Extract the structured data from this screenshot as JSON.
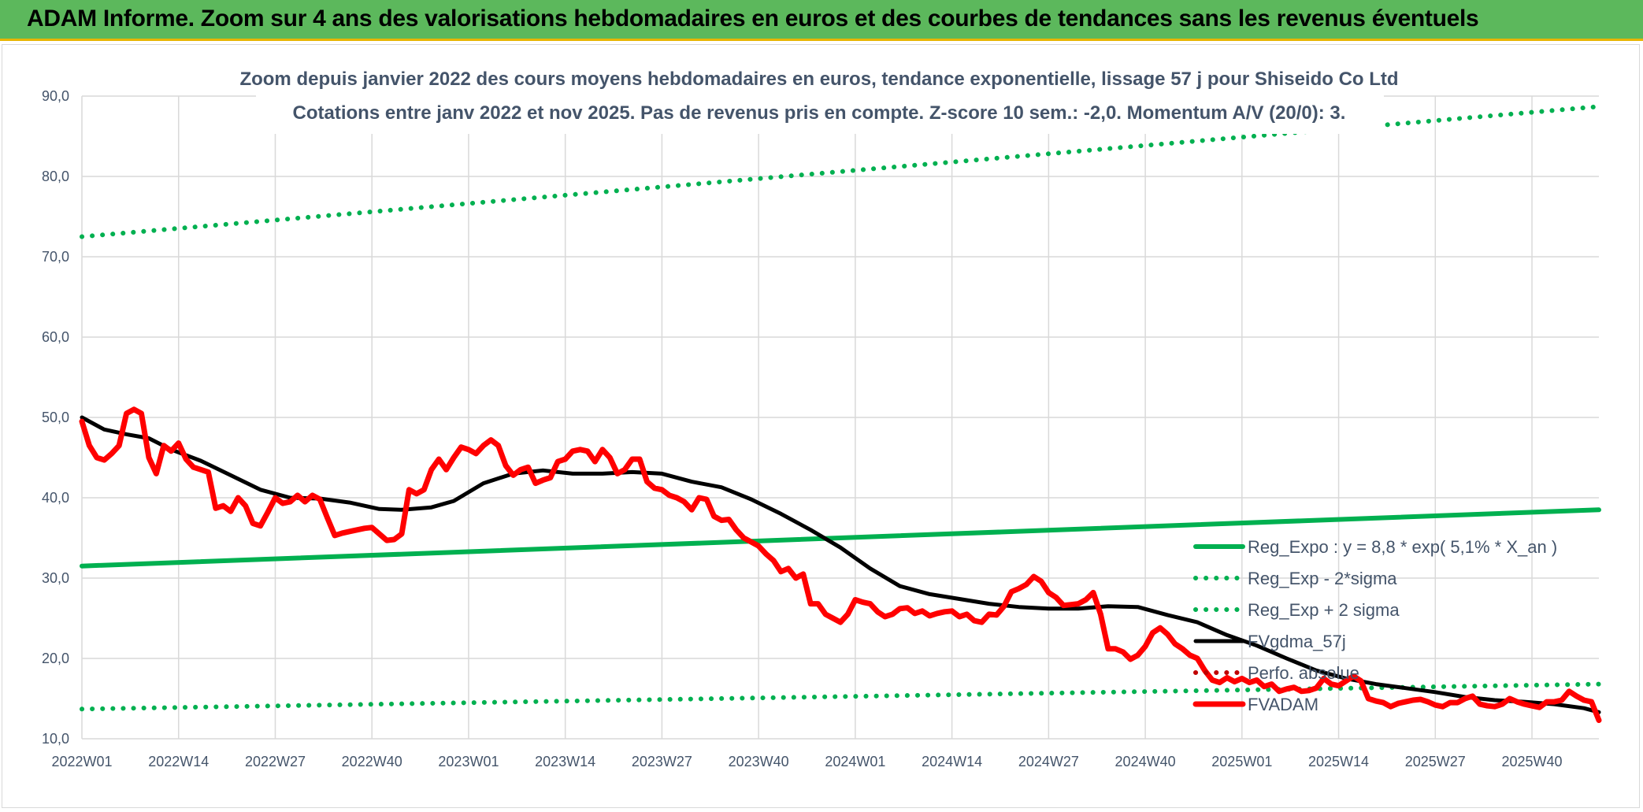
{
  "header": {
    "title": "ADAM Informe. Zoom sur 4 ans des valorisations hebdomadaires en euros et des courbes de tendances sans les revenus éventuels"
  },
  "colors": {
    "banner": "#5cb85c",
    "banner_border": "#e8b500",
    "green": "#00b050",
    "black": "#000000",
    "red": "#ff0000",
    "text": "#44546a",
    "grid": "#d9d9d9"
  },
  "chart_data": {
    "type": "line",
    "title_lines": [
      "Zoom depuis janvier 2022 des cours moyens hebdomadaires en euros, tendance exponentielle, lissage 57 j pour Shiseido Co Ltd",
      "Cotations entre janv 2022 et nov 2025. Pas de revenus pris en compte. Z-score 10 sem.: -2,0. Momentum A/V (20/0): 3."
    ],
    "xlabel": "",
    "ylabel": "",
    "ylim": [
      10,
      90
    ],
    "y_ticks": [
      "10,0",
      "20,0",
      "30,0",
      "40,0",
      "50,0",
      "60,0",
      "70,0",
      "80,0",
      "90,0"
    ],
    "y_tick_values": [
      10,
      20,
      30,
      40,
      50,
      60,
      70,
      80,
      90
    ],
    "x_range": [
      0,
      204
    ],
    "x_ticks": [
      "2022W01",
      "2022W14",
      "2022W27",
      "2022W40",
      "2023W01",
      "2023W14",
      "2023W27",
      "2023W40",
      "2024W01",
      "2024W14",
      "2024W27",
      "2024W40",
      "2025W01",
      "2025W14",
      "2025W27",
      "2025W40"
    ],
    "x_tick_weeks": [
      0,
      13,
      26,
      39,
      52,
      65,
      78,
      91,
      104,
      117,
      130,
      143,
      156,
      169,
      182,
      195
    ],
    "grid": true,
    "legend_position": "bottom-right",
    "series": [
      {
        "name": "Reg_Expo : y = 8,8 * exp( 5,1% *  X_an )",
        "style": "solid-thick",
        "color": "#00b050",
        "points": [
          [
            0,
            31.5
          ],
          [
            204,
            38.5
          ]
        ]
      },
      {
        "name": "Reg_Exp - 2*sigma",
        "style": "dotted",
        "color": "#00b050",
        "points": [
          [
            0,
            13.7
          ],
          [
            204,
            16.8
          ]
        ]
      },
      {
        "name": "Reg_Exp + 2 sigma",
        "style": "dotted",
        "color": "#00b050",
        "points": [
          [
            0,
            72.5
          ],
          [
            204,
            88.7
          ]
        ]
      },
      {
        "name": "FVgdma_57j",
        "style": "solid",
        "color": "#000000",
        "points": [
          [
            0,
            50.0
          ],
          [
            3,
            48.5
          ],
          [
            6,
            47.9
          ],
          [
            9,
            47.4
          ],
          [
            12,
            46.0
          ],
          [
            16,
            44.6
          ],
          [
            20,
            42.8
          ],
          [
            24,
            41.0
          ],
          [
            28,
            40.0
          ],
          [
            32,
            39.9
          ],
          [
            36,
            39.4
          ],
          [
            40,
            38.6
          ],
          [
            43,
            38.5
          ],
          [
            47,
            38.8
          ],
          [
            50,
            39.6
          ],
          [
            54,
            41.8
          ],
          [
            58,
            43.0
          ],
          [
            62,
            43.4
          ],
          [
            66,
            43.0
          ],
          [
            70,
            43.0
          ],
          [
            74,
            43.2
          ],
          [
            78,
            43.0
          ],
          [
            82,
            42.0
          ],
          [
            86,
            41.3
          ],
          [
            90,
            39.8
          ],
          [
            94,
            38.0
          ],
          [
            98,
            36.0
          ],
          [
            102,
            33.8
          ],
          [
            106,
            31.2
          ],
          [
            110,
            29.0
          ],
          [
            114,
            28.0
          ],
          [
            118,
            27.4
          ],
          [
            122,
            26.8
          ],
          [
            126,
            26.4
          ],
          [
            130,
            26.2
          ],
          [
            134,
            26.2
          ],
          [
            138,
            26.5
          ],
          [
            142,
            26.4
          ],
          [
            146,
            25.4
          ],
          [
            150,
            24.5
          ],
          [
            154,
            22.9
          ],
          [
            158,
            21.6
          ],
          [
            162,
            20.0
          ],
          [
            166,
            18.5
          ],
          [
            170,
            17.5
          ],
          [
            174,
            16.8
          ],
          [
            178,
            16.3
          ],
          [
            182,
            15.8
          ],
          [
            186,
            15.2
          ],
          [
            190,
            14.8
          ],
          [
            194,
            14.6
          ],
          [
            198,
            14.3
          ],
          [
            202,
            13.8
          ],
          [
            204,
            13.3
          ]
        ]
      },
      {
        "name": "Perfo. absolue",
        "style": "dotted",
        "color": "#c00000",
        "points": []
      },
      {
        "name": "FVADAM",
        "style": "solid-thick",
        "color": "#ff0000",
        "points": [
          [
            0,
            49.5
          ],
          [
            1,
            46.5
          ],
          [
            2,
            45.0
          ],
          [
            3,
            44.7
          ],
          [
            4,
            45.5
          ],
          [
            5,
            46.5
          ],
          [
            6,
            50.5
          ],
          [
            7,
            51.0
          ],
          [
            8,
            50.5
          ],
          [
            9,
            45.0
          ],
          [
            10,
            43.0
          ],
          [
            11,
            46.5
          ],
          [
            12,
            45.8
          ],
          [
            13,
            46.8
          ],
          [
            14,
            44.8
          ],
          [
            15,
            43.8
          ],
          [
            16,
            43.5
          ],
          [
            17,
            43.2
          ],
          [
            18,
            38.7
          ],
          [
            19,
            39.0
          ],
          [
            20,
            38.3
          ],
          [
            21,
            40.0
          ],
          [
            22,
            39.0
          ],
          [
            23,
            36.8
          ],
          [
            24,
            36.5
          ],
          [
            25,
            38.2
          ],
          [
            26,
            40.0
          ],
          [
            27,
            39.3
          ],
          [
            28,
            39.5
          ],
          [
            29,
            40.3
          ],
          [
            30,
            39.5
          ],
          [
            31,
            40.3
          ],
          [
            32,
            39.8
          ],
          [
            33,
            37.5
          ],
          [
            34,
            35.3
          ],
          [
            35,
            35.6
          ],
          [
            36,
            35.8
          ],
          [
            37,
            36.0
          ],
          [
            38,
            36.2
          ],
          [
            39,
            36.3
          ],
          [
            40,
            35.5
          ],
          [
            41,
            34.7
          ],
          [
            42,
            34.8
          ],
          [
            43,
            35.5
          ],
          [
            44,
            41.0
          ],
          [
            45,
            40.5
          ],
          [
            46,
            41.0
          ],
          [
            47,
            43.5
          ],
          [
            48,
            44.8
          ],
          [
            49,
            43.5
          ],
          [
            50,
            45.0
          ],
          [
            51,
            46.3
          ],
          [
            52,
            46.0
          ],
          [
            53,
            45.5
          ],
          [
            54,
            46.5
          ],
          [
            55,
            47.2
          ],
          [
            56,
            46.5
          ],
          [
            57,
            44.0
          ],
          [
            58,
            42.8
          ],
          [
            59,
            43.5
          ],
          [
            60,
            43.8
          ],
          [
            61,
            41.8
          ],
          [
            62,
            42.2
          ],
          [
            63,
            42.5
          ],
          [
            64,
            44.5
          ],
          [
            65,
            44.8
          ],
          [
            66,
            45.8
          ],
          [
            67,
            46.0
          ],
          [
            68,
            45.8
          ],
          [
            69,
            44.5
          ],
          [
            70,
            46.0
          ],
          [
            71,
            45.0
          ],
          [
            72,
            43.0
          ],
          [
            73,
            43.5
          ],
          [
            74,
            44.8
          ],
          [
            75,
            44.8
          ],
          [
            76,
            42.0
          ],
          [
            77,
            41.2
          ],
          [
            78,
            41.0
          ],
          [
            79,
            40.3
          ],
          [
            80,
            40.0
          ],
          [
            81,
            39.5
          ],
          [
            82,
            38.5
          ],
          [
            83,
            40.0
          ],
          [
            84,
            39.8
          ],
          [
            85,
            37.7
          ],
          [
            86,
            37.2
          ],
          [
            87,
            37.3
          ],
          [
            88,
            36.0
          ],
          [
            89,
            35.0
          ],
          [
            90,
            34.5
          ],
          [
            91,
            34.0
          ],
          [
            92,
            33.0
          ],
          [
            93,
            32.2
          ],
          [
            94,
            30.8
          ],
          [
            95,
            31.2
          ],
          [
            96,
            30.0
          ],
          [
            97,
            30.5
          ],
          [
            98,
            26.8
          ],
          [
            99,
            26.8
          ],
          [
            100,
            25.5
          ],
          [
            101,
            25.0
          ],
          [
            102,
            24.5
          ],
          [
            103,
            25.5
          ],
          [
            104,
            27.3
          ],
          [
            105,
            27.0
          ],
          [
            106,
            26.8
          ],
          [
            107,
            25.8
          ],
          [
            108,
            25.2
          ],
          [
            109,
            25.5
          ],
          [
            110,
            26.2
          ],
          [
            111,
            26.3
          ],
          [
            112,
            25.6
          ],
          [
            113,
            25.9
          ],
          [
            114,
            25.3
          ],
          [
            115,
            25.6
          ],
          [
            116,
            25.8
          ],
          [
            117,
            25.9
          ],
          [
            118,
            25.2
          ],
          [
            119,
            25.5
          ],
          [
            120,
            24.7
          ],
          [
            121,
            24.5
          ],
          [
            122,
            25.5
          ],
          [
            123,
            25.4
          ],
          [
            124,
            26.5
          ],
          [
            125,
            28.3
          ],
          [
            126,
            28.7
          ],
          [
            127,
            29.2
          ],
          [
            128,
            30.2
          ],
          [
            129,
            29.6
          ],
          [
            130,
            28.2
          ],
          [
            131,
            27.6
          ],
          [
            132,
            26.6
          ],
          [
            133,
            26.7
          ],
          [
            134,
            26.8
          ],
          [
            135,
            27.3
          ],
          [
            136,
            28.2
          ],
          [
            137,
            25.5
          ],
          [
            138,
            21.2
          ],
          [
            139,
            21.2
          ],
          [
            140,
            20.8
          ],
          [
            141,
            19.9
          ],
          [
            142,
            20.4
          ],
          [
            143,
            21.5
          ],
          [
            144,
            23.2
          ],
          [
            145,
            23.8
          ],
          [
            146,
            23.0
          ],
          [
            147,
            21.8
          ],
          [
            148,
            21.2
          ],
          [
            149,
            20.4
          ],
          [
            150,
            20.0
          ],
          [
            151,
            18.5
          ],
          [
            152,
            17.3
          ],
          [
            153,
            17.0
          ],
          [
            154,
            17.6
          ],
          [
            155,
            17.1
          ],
          [
            156,
            17.5
          ],
          [
            157,
            17.0
          ],
          [
            158,
            17.3
          ],
          [
            159,
            16.5
          ],
          [
            160,
            16.8
          ],
          [
            161,
            15.9
          ],
          [
            162,
            16.2
          ],
          [
            163,
            16.4
          ],
          [
            164,
            15.9
          ],
          [
            165,
            16.0
          ],
          [
            166,
            16.3
          ],
          [
            167,
            17.5
          ],
          [
            168,
            16.8
          ],
          [
            169,
            16.6
          ],
          [
            170,
            17.2
          ],
          [
            171,
            17.8
          ],
          [
            172,
            17.2
          ],
          [
            173,
            15.0
          ],
          [
            174,
            14.7
          ],
          [
            175,
            14.5
          ],
          [
            176,
            14.0
          ],
          [
            177,
            14.4
          ],
          [
            178,
            14.6
          ],
          [
            179,
            14.8
          ],
          [
            180,
            14.9
          ],
          [
            181,
            14.6
          ],
          [
            182,
            14.2
          ],
          [
            183,
            14.0
          ],
          [
            184,
            14.5
          ],
          [
            185,
            14.5
          ],
          [
            186,
            15.0
          ],
          [
            187,
            15.3
          ],
          [
            188,
            14.3
          ],
          [
            189,
            14.1
          ],
          [
            190,
            14.0
          ],
          [
            191,
            14.3
          ],
          [
            192,
            15.0
          ],
          [
            193,
            14.6
          ],
          [
            194,
            14.3
          ],
          [
            195,
            14.1
          ],
          [
            196,
            13.9
          ],
          [
            197,
            14.6
          ],
          [
            198,
            14.6
          ],
          [
            199,
            14.8
          ],
          [
            200,
            15.9
          ],
          [
            201,
            15.3
          ],
          [
            202,
            14.8
          ],
          [
            203,
            14.6
          ],
          [
            204,
            12.3
          ]
        ]
      }
    ]
  }
}
